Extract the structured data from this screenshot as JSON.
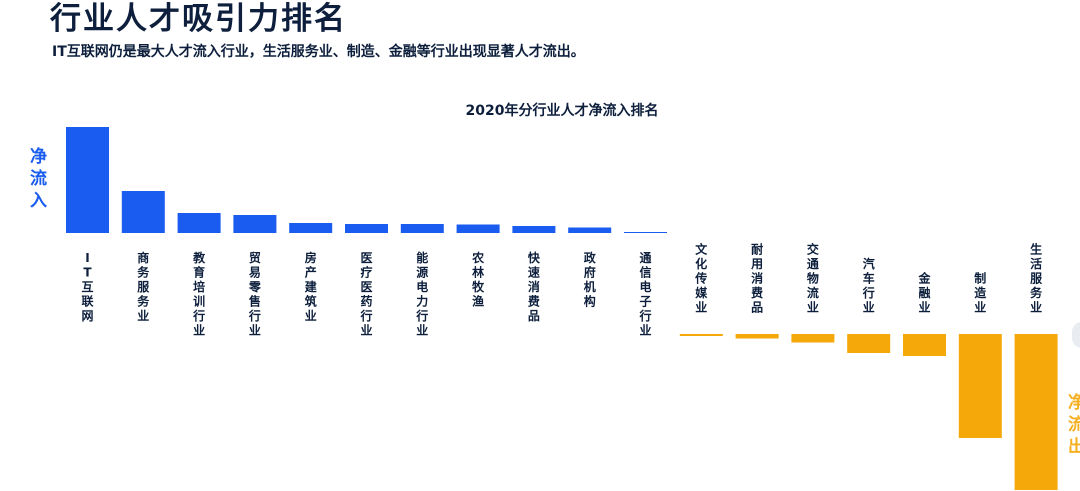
{
  "header": {
    "title": "行业人才吸引力排名",
    "subtitle": "IT互联网仍是最大人才流入行业，生活服务业、制造、金融等行业出现显著人才流出。"
  },
  "side_labels": {
    "inflow": "净流入",
    "outflow": "净流出"
  },
  "colors": {
    "inflow": "#1a5cf0",
    "outflow": "#f5a80a",
    "text": "#0d1f3c"
  },
  "chart_data": {
    "type": "bar",
    "title": "2020年分行业人才净流入排名",
    "xlabel": "",
    "ylabel": "",
    "grid": false,
    "categories": [
      "IT互联网",
      "商务服务业",
      "教育培训行业",
      "贸易零售行业",
      "房产建筑业",
      "医疗医药行业",
      "能源电力行业",
      "农林牧渔",
      "快速消费品",
      "政府机构",
      "通信电子行业",
      "文化传媒业",
      "耐用消费品",
      "交通物流业",
      "汽车行业",
      "金融业",
      "制造业",
      "生活服务业"
    ],
    "values": [
      10.6,
      4.2,
      2.0,
      1.8,
      1.0,
      0.9,
      0.9,
      0.85,
      0.7,
      0.55,
      0.1,
      -0.2,
      -0.45,
      -0.85,
      -1.9,
      -2.2,
      -10.4,
      -15.6
    ],
    "ylim": [
      -16,
      11
    ]
  }
}
